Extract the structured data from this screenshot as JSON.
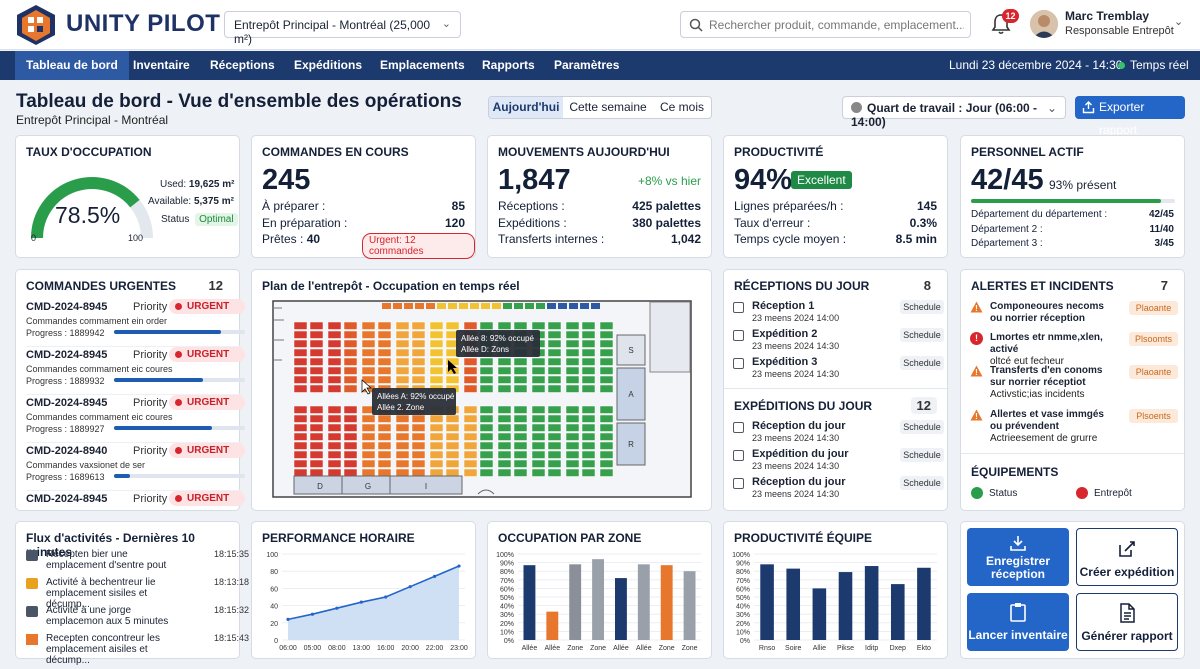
{
  "brand": {
    "name": "UNITY PILOT"
  },
  "header": {
    "warehouse": "Entrepôt Principal - Montréal (25,000 m²)",
    "search_placeholder": "Rechercher produit, commande, emplacement...",
    "notif_count": "12",
    "user_name": "Marc Tremblay",
    "user_role": "Responsable Entrepôt"
  },
  "nav": {
    "items": [
      "Tableau de bord",
      "Inventaire",
      "Réceptions",
      "Expéditions",
      "Emplacements",
      "Rapports",
      "Paramètres"
    ],
    "datetime": "Lundi 23 décembre 2024 - 14:30",
    "live": "Temps réel"
  },
  "page": {
    "title": "Tableau de bord - Vue d'ensemble des opérations",
    "subtitle": "Entrepôt Principal - Montréal",
    "periods": [
      "Aujourd'hui",
      "Cette semaine",
      "Ce mois"
    ],
    "shift": "Quart de travail : Jour (06:00 - 14:00)",
    "export": "Exporter rapport"
  },
  "occupancy": {
    "title": "Taux d'occupation",
    "percent_label": "78.5%",
    "percent": 78.5,
    "gauge_min": "0",
    "gauge_max": "100",
    "used_label": "Used:",
    "used": "19,625 m²",
    "available_label": "Available:",
    "available": "5,375 m²",
    "status_label": "Status",
    "status": "Optimal"
  },
  "orders": {
    "title": "Commandes en cours",
    "total": "245",
    "rows": [
      {
        "label": "À préparer :",
        "value": "85"
      },
      {
        "label": "En préparation :",
        "value": "120"
      }
    ],
    "ready_label": "Prêtes :",
    "ready": "40",
    "urgent": "Urgent: 12 commandes"
  },
  "movements": {
    "title": "Mouvements aujourd'hui",
    "total": "1,847",
    "delta": "+8% vs hier",
    "rows": [
      {
        "label": "Réceptions :",
        "value": "425 palettes"
      },
      {
        "label": "Expéditions :",
        "value": "380 palettes"
      },
      {
        "label": "Transferts internes :",
        "value": "1,042"
      }
    ]
  },
  "productivity": {
    "title": "Productivité",
    "value": "94%",
    "badge": "Excellent",
    "rows": [
      {
        "label": "Lignes préparées/h :",
        "value": "145"
      },
      {
        "label": "Taux d'erreur :",
        "value": "0.3%"
      },
      {
        "label": "Temps cycle moyen :",
        "value": "8.5 min"
      }
    ]
  },
  "staff": {
    "title": "Personnel actif",
    "value": "42/45",
    "present": "93% présent",
    "progress": 93,
    "rows": [
      {
        "label": "Département du département :",
        "value": "42/45"
      },
      {
        "label": "Département 2 :",
        "value": "11/40"
      },
      {
        "label": "Département 3 :",
        "value": "3/45"
      }
    ]
  },
  "urgent_orders": {
    "title": "Commandes urgentes",
    "count": "12",
    "priority_label": "Priority",
    "badge": "URGENT",
    "items": [
      {
        "id": "CMD-2024-8945",
        "desc": "Commandes commament ein order",
        "progress": "Progress : 1889942",
        "pct": 0.82
      },
      {
        "id": "CMD-2024-8945",
        "desc": "Commandes commament eic coures",
        "progress": "Progress : 1889932",
        "pct": 0.68
      },
      {
        "id": "CMD-2024-8945",
        "desc": "Commandes commament eic coures",
        "progress": "Progress : 1889927",
        "pct": 0.75
      },
      {
        "id": "CMD-2024-8940",
        "desc": "Commandes vaxsionet de ser",
        "progress": "Progress : 1689613",
        "pct": 0.12
      },
      {
        "id": "CMD-2024-8945",
        "desc": "",
        "progress": "",
        "pct": 0
      }
    ]
  },
  "map": {
    "title": "Plan de l'entrepôt - Occupation en temps réel",
    "tooltip1": [
      "Allée 8: 92% occupé",
      "Allée D: Zons"
    ],
    "tooltip2": [
      "Allées A: 92% occupé",
      "Allée 2. Zone"
    ],
    "zones_right": [
      "S",
      "A",
      "R"
    ],
    "zones_bottom": [
      "D",
      "G",
      "I"
    ]
  },
  "receptions": {
    "title": "Réceptions du jour",
    "count": "8",
    "items": [
      {
        "title": "Réception 1",
        "date": "23 meens 2024 14:00",
        "badge": "Schedule"
      },
      {
        "title": "Expédition 2",
        "date": "23 meens 2024 14:30",
        "badge": "Schedule"
      },
      {
        "title": "Expédition 3",
        "date": "23 meens 2024 14:30",
        "badge": "Schedule"
      }
    ]
  },
  "shipments": {
    "title": "Expéditions du jour",
    "count": "12",
    "items": [
      {
        "title": "Réception du jour",
        "date": "23 meens 2024 14:30",
        "badge": "Schedule"
      },
      {
        "title": "Expédition du jour",
        "date": "23 meens 2024 14:30",
        "badge": "Schedule"
      },
      {
        "title": "Réception du jour",
        "date": "23 meens 2024 14:30",
        "badge": "Schedule"
      }
    ]
  },
  "alerts": {
    "title": "Alertes et incidents",
    "count": "7",
    "items": [
      {
        "title": "Componeoures necoms ou norrier réception",
        "desc": "",
        "badge": "Plaoante",
        "kind": "warn"
      },
      {
        "title": "Lmortes etr nmme,xlen, activé",
        "desc": "oltcé eut fecheur",
        "badge": "Plsoomts",
        "kind": "error"
      },
      {
        "title": "Transferts d'en conoms sur norrier réceptiot",
        "desc": "Activstic;ias incidents",
        "badge": "Plaoante",
        "kind": "warn"
      },
      {
        "title": "Allertes et vase immgés ou prévendent",
        "desc": "Actrieesement de grurre",
        "badge": "Plsoents",
        "kind": "warn"
      }
    ]
  },
  "equipment": {
    "title": "Équipements",
    "status_label": "Status",
    "entrepot_label": "Entrepôt"
  },
  "feed": {
    "title": "Flux d'activités - Dernières 10 minutes",
    "items": [
      {
        "text": "Récepten bier une emplacement d'sentre pout",
        "time": "18:15:35"
      },
      {
        "text": "Activité à bechentreur lie emplacement sisiles et décump...",
        "time": "18:13:18"
      },
      {
        "text": "Activité à une jorge emplacemon aux 5 minutes",
        "time": "18:15:32"
      },
      {
        "text": "Recepten concontreur les emplacement aisiles et décump...",
        "time": "18:15:43"
      }
    ]
  },
  "chart_data": [
    {
      "type": "area",
      "title": "Performance horaire",
      "categories": [
        "06:00",
        "05:00",
        "08:00",
        "13:00",
        "16:00",
        "20:00",
        "22:00",
        "23:00"
      ],
      "values": [
        24,
        30,
        37,
        44,
        50,
        62,
        74,
        86
      ],
      "ylim": [
        0,
        100
      ],
      "yticks": [
        "0",
        "20",
        "40",
        "60",
        "80",
        "100"
      ]
    },
    {
      "type": "bar",
      "title": "Occupation par zone",
      "categories": [
        "Allée",
        "Allée",
        "Zone",
        "Zone",
        "Allée",
        "Allée",
        "Zone",
        "Zone"
      ],
      "values": [
        87,
        33,
        88,
        94,
        72,
        88,
        87,
        80
      ],
      "colors": [
        "#1d3a6e",
        "#e8772e",
        "#8a8f99",
        "#9aa0aa",
        "#1d3a6e",
        "#9aa0aa",
        "#e8772e",
        "#9aa0aa"
      ],
      "ylim": [
        0,
        100
      ],
      "yticks": [
        "0%",
        "10%",
        "20%",
        "30%",
        "40%",
        "50%",
        "60%",
        "70%",
        "80%",
        "90%",
        "100%"
      ]
    },
    {
      "type": "bar",
      "title": "Productivité équipe",
      "categories": [
        "Rnso",
        "Soire",
        "Allie",
        "Pikse",
        "Iditp",
        "Dxep",
        "Ekto"
      ],
      "values": [
        88,
        83,
        60,
        79,
        86,
        65,
        84
      ],
      "colors": [
        "#1d3a6e",
        "#1d3a6e",
        "#1d3a6e",
        "#1d3a6e",
        "#1d3a6e",
        "#1d3a6e",
        "#1d3a6e"
      ],
      "ylim": [
        0,
        100
      ],
      "yticks": [
        "0%",
        "10%",
        "20%",
        "30%",
        "40%",
        "50%",
        "60%",
        "70%",
        "80%",
        "90%",
        "100%"
      ]
    }
  ],
  "actions": {
    "register": "Enregistrer réception",
    "create": "Créer expédition",
    "inventory": "Lancer inventaire",
    "report": "Générer rapport"
  }
}
